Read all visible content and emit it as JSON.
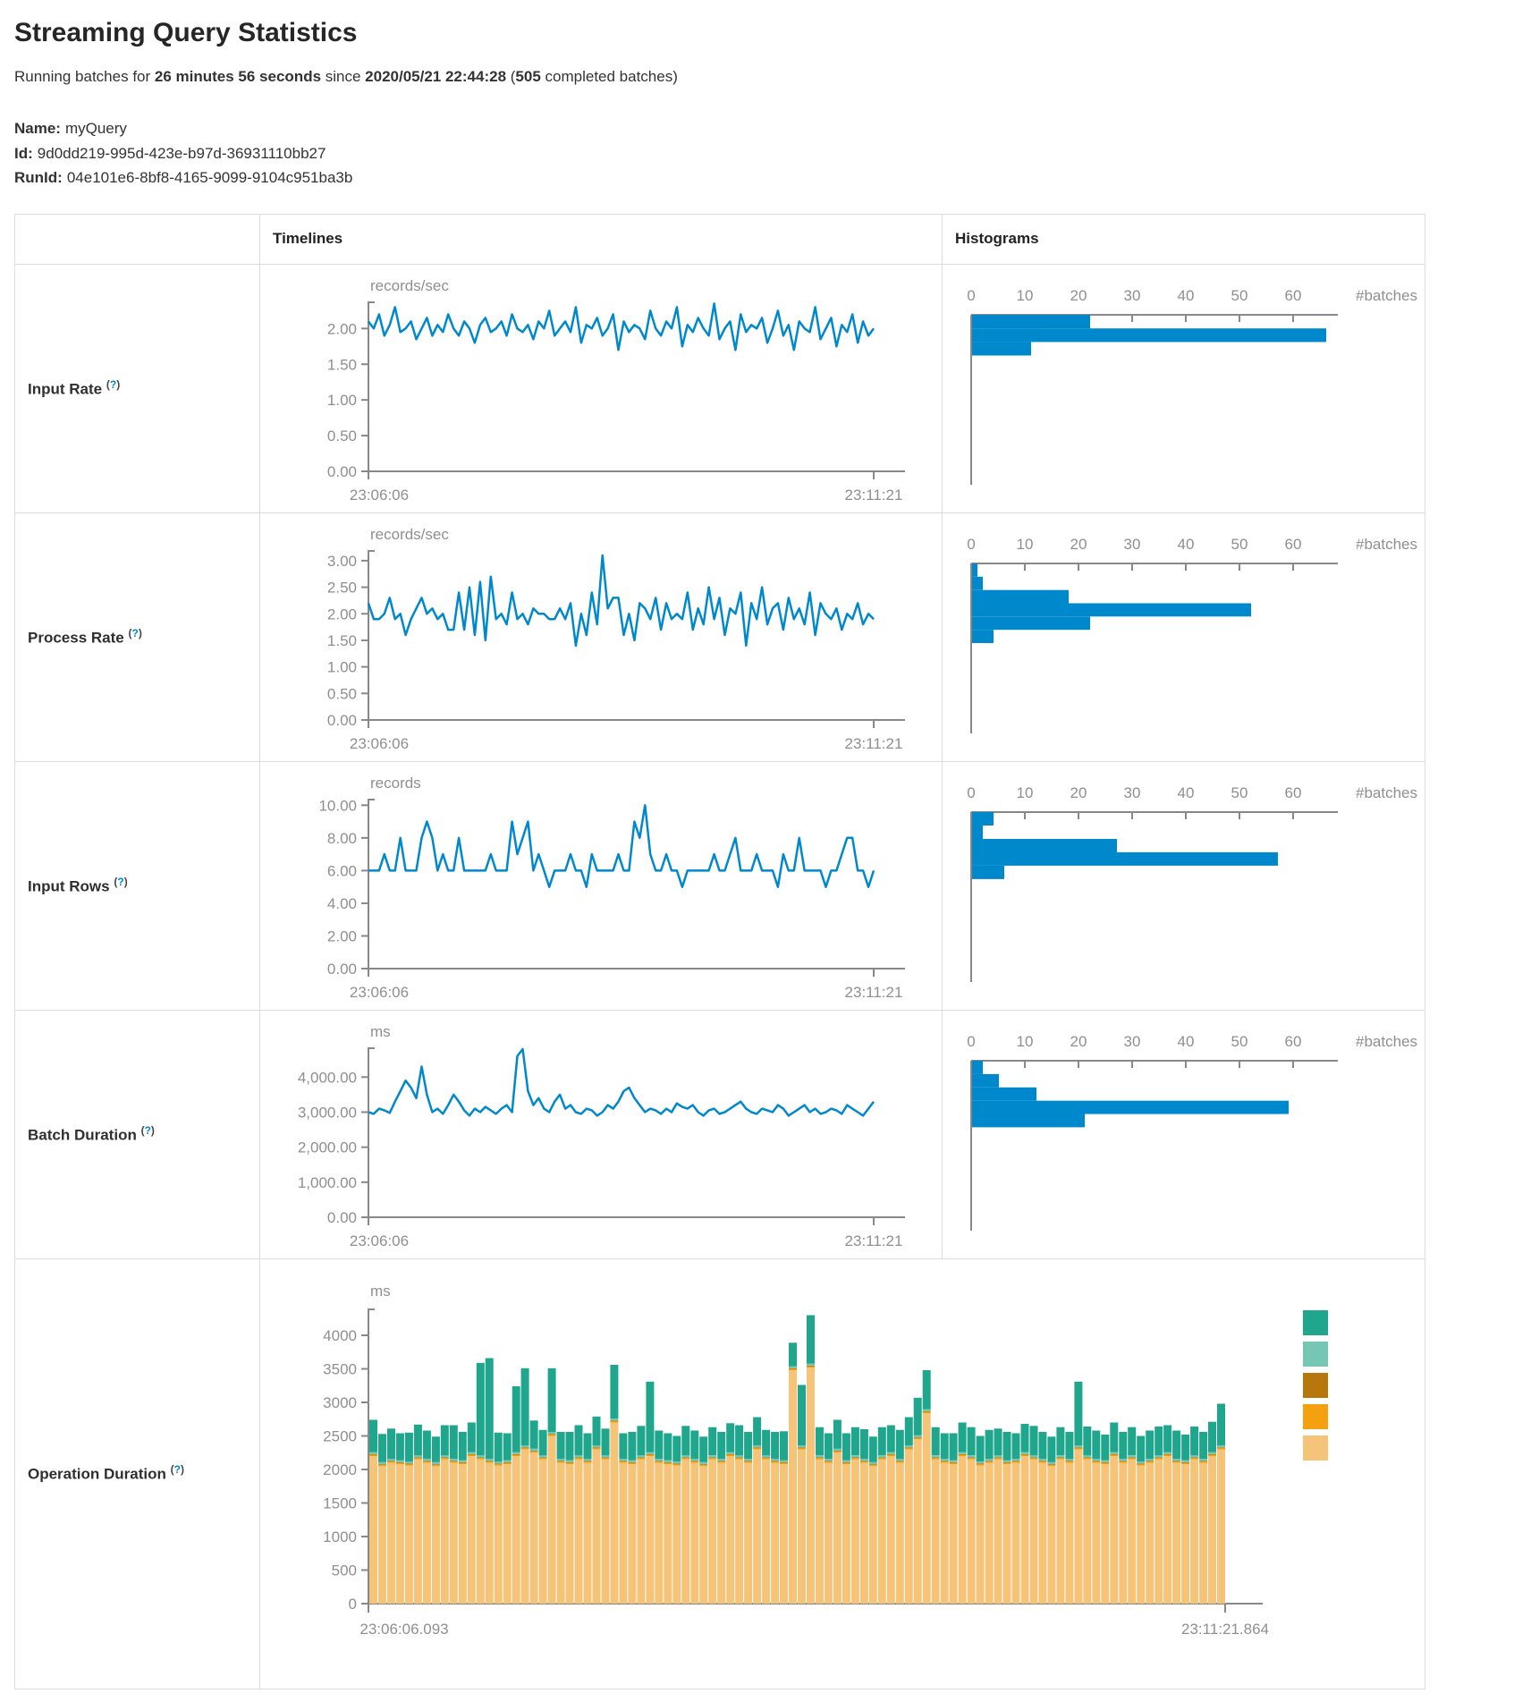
{
  "header": {
    "title": "Streaming Query Statistics",
    "running_prefix": "Running batches for ",
    "duration": "26 minutes 56 seconds",
    "since_word": " since ",
    "start_time": "2020/05/21 22:44:28",
    "paren_open": " (",
    "batch_count": "505",
    "batches_suffix": " completed batches)"
  },
  "query_info": {
    "name_label": "Name:",
    "name_value": "myQuery",
    "id_label": "Id:",
    "id_value": "9d0dd219-995d-423e-b97d-36931110bb27",
    "runid_label": "RunId:",
    "runid_value": "04e101e6-8bf8-4165-9099-9104c951ba3b"
  },
  "table": {
    "col_timelines": "Timelines",
    "col_histograms": "Histograms",
    "help": {
      "open": "(",
      "q": "?",
      "close": ")"
    },
    "rows": [
      {
        "label": "Input Rate"
      },
      {
        "label": "Process Rate"
      },
      {
        "label": "Input Rows"
      },
      {
        "label": "Batch Duration"
      },
      {
        "label": "Operation Duration"
      }
    ]
  },
  "colors": {
    "accent_blue": "#0088cc",
    "axis_gray": "#888888",
    "text_muted": "#8f8f8f",
    "border": "#dddddd"
  },
  "chart_data": [
    {
      "id": "input_rate_timeline",
      "type": "line",
      "unit": "records/sec",
      "x_start": "23:06:06",
      "x_end": "23:11:21",
      "ymax": 2.38,
      "yticks": [
        {
          "v": 2,
          "label": "2.00"
        },
        {
          "v": 1.5,
          "label": "1.50"
        },
        {
          "v": 1,
          "label": "1.00"
        },
        {
          "v": 0.5,
          "label": "0.50"
        },
        {
          "v": 0,
          "label": "0.00"
        }
      ],
      "values": [
        2.1,
        2.0,
        2.2,
        1.9,
        2.05,
        2.3,
        1.95,
        2.0,
        2.1,
        1.85,
        2.0,
        2.15,
        1.9,
        2.05,
        1.95,
        2.2,
        2.0,
        1.9,
        2.1,
        2.0,
        1.8,
        2.05,
        2.15,
        1.95,
        2.0,
        2.1,
        1.9,
        2.2,
        2.0,
        1.95,
        2.05,
        1.85,
        2.1,
        2.0,
        2.25,
        1.9,
        2.0,
        2.1,
        1.95,
        2.3,
        1.8,
        2.05,
        2.0,
        2.15,
        1.9,
        2.0,
        2.2,
        1.7,
        2.1,
        1.95,
        2.05,
        2.0,
        1.85,
        2.25,
        2.0,
        1.9,
        2.1,
        2.0,
        2.3,
        1.75,
        2.05,
        1.95,
        2.15,
        2.0,
        1.9,
        2.35,
        1.85,
        2.0,
        2.1,
        1.7,
        2.2,
        1.95,
        2.05,
        2.0,
        2.15,
        1.8,
        2.0,
        2.25,
        1.9,
        2.05,
        1.7,
        2.1,
        2.0,
        1.95,
        2.3,
        1.85,
        2.0,
        2.15,
        1.75,
        2.05,
        1.95,
        2.2,
        1.8,
        2.1,
        1.9,
        2.0
      ]
    },
    {
      "id": "input_rate_histogram",
      "type": "bar",
      "xlabel": "#batches",
      "xticks": [
        0,
        10,
        20,
        30,
        40,
        50,
        60
      ],
      "value_max": 2.38,
      "bins": [
        {
          "hi": 2.38,
          "lo": 2.19,
          "count": 22
        },
        {
          "hi": 2.19,
          "lo": 2.0,
          "count": 66
        },
        {
          "hi": 2.0,
          "lo": 1.81,
          "count": 11
        }
      ]
    },
    {
      "id": "process_rate_timeline",
      "type": "line",
      "unit": "records/sec",
      "x_start": "23:06:06",
      "x_end": "23:11:21",
      "ymax": 3.2,
      "yticks": [
        {
          "v": 3,
          "label": "3.00"
        },
        {
          "v": 2.5,
          "label": "2.50"
        },
        {
          "v": 2,
          "label": "2.00"
        },
        {
          "v": 1.5,
          "label": "1.50"
        },
        {
          "v": 1,
          "label": "1.00"
        },
        {
          "v": 0.5,
          "label": "0.50"
        },
        {
          "v": 0,
          "label": "0.00"
        }
      ],
      "values": [
        2.2,
        1.9,
        1.9,
        2.0,
        2.3,
        1.9,
        2.0,
        1.6,
        1.9,
        2.1,
        2.3,
        2.0,
        2.1,
        1.9,
        2.0,
        1.7,
        1.7,
        2.4,
        1.7,
        2.5,
        1.6,
        2.6,
        1.5,
        2.7,
        1.9,
        2.0,
        1.8,
        2.4,
        1.9,
        2.0,
        1.8,
        2.1,
        2.0,
        2.0,
        1.9,
        1.9,
        2.1,
        1.9,
        2.2,
        1.4,
        2.0,
        1.6,
        2.4,
        1.8,
        3.1,
        2.1,
        2.3,
        2.3,
        1.6,
        2.0,
        1.5,
        2.2,
        2.1,
        1.9,
        2.3,
        1.7,
        2.2,
        1.9,
        2.0,
        1.9,
        2.4,
        1.7,
        2.1,
        1.8,
        2.5,
        1.9,
        2.3,
        1.6,
        2.1,
        2.0,
        2.4,
        1.4,
        2.2,
        1.9,
        2.5,
        1.8,
        2.1,
        2.2,
        1.7,
        2.3,
        1.9,
        2.1,
        1.8,
        2.4,
        1.6,
        2.2,
        2.0,
        1.9,
        2.1,
        1.7,
        2.0,
        1.9,
        2.2,
        1.8,
        2.0,
        1.9
      ]
    },
    {
      "id": "process_rate_histogram",
      "type": "bar",
      "xlabel": "#batches",
      "xticks": [
        0,
        10,
        20,
        30,
        40,
        50,
        60
      ],
      "value_max": 3.2,
      "bins": [
        {
          "hi": 3.2,
          "lo": 2.95,
          "count": 1
        },
        {
          "hi": 2.95,
          "lo": 2.7,
          "count": 2
        },
        {
          "hi": 2.7,
          "lo": 2.45,
          "count": 18
        },
        {
          "hi": 2.45,
          "lo": 2.2,
          "count": 52
        },
        {
          "hi": 2.2,
          "lo": 1.95,
          "count": 22
        },
        {
          "hi": 1.95,
          "lo": 1.7,
          "count": 4
        }
      ]
    },
    {
      "id": "input_rows_timeline",
      "type": "line",
      "unit": "records",
      "x_start": "23:06:06",
      "x_end": "23:11:21",
      "ymax": 10.4,
      "yticks": [
        {
          "v": 10,
          "label": "10.00"
        },
        {
          "v": 8,
          "label": "8.00"
        },
        {
          "v": 6,
          "label": "6.00"
        },
        {
          "v": 4,
          "label": "4.00"
        },
        {
          "v": 2,
          "label": "2.00"
        },
        {
          "v": 0,
          "label": "0.00"
        }
      ],
      "values": [
        6,
        6,
        6,
        7,
        6,
        6,
        8,
        6,
        6,
        6,
        8,
        9,
        8,
        6,
        7,
        6,
        6,
        8,
        6,
        6,
        6,
        6,
        6,
        7,
        6,
        6,
        6,
        9,
        7,
        8,
        9,
        6,
        7,
        6,
        5,
        6,
        6,
        6,
        7,
        6,
        6,
        5,
        7,
        6,
        6,
        6,
        6,
        7,
        6,
        6,
        9,
        8,
        10,
        7,
        6,
        6,
        7,
        6,
        6,
        5,
        6,
        6,
        6,
        6,
        6,
        7,
        6,
        6,
        7,
        8,
        6,
        6,
        6,
        7,
        6,
        6,
        6,
        5,
        7,
        6,
        6,
        8,
        6,
        6,
        6,
        6,
        5,
        6,
        6,
        7,
        8,
        8,
        6,
        6,
        5,
        6
      ]
    },
    {
      "id": "input_rows_histogram",
      "type": "bar",
      "xlabel": "#batches",
      "xticks": [
        0,
        10,
        20,
        30,
        40,
        50,
        60
      ],
      "value_max": 10.4,
      "bins": [
        {
          "hi": 10.4,
          "lo": 9.58,
          "count": 4
        },
        {
          "hi": 9.58,
          "lo": 8.76,
          "count": 2
        },
        {
          "hi": 8.76,
          "lo": 7.94,
          "count": 27
        },
        {
          "hi": 7.94,
          "lo": 7.12,
          "count": 57
        },
        {
          "hi": 7.12,
          "lo": 6.3,
          "count": 6
        }
      ]
    },
    {
      "id": "batch_duration_timeline",
      "type": "line",
      "unit": "ms",
      "x_start": "23:06:06",
      "x_end": "23:11:21",
      "ymax": 4850,
      "yticks": [
        {
          "v": 4000,
          "label": "4,000.00"
        },
        {
          "v": 3000,
          "label": "3,000.00"
        },
        {
          "v": 2000,
          "label": "2,000.00"
        },
        {
          "v": 1000,
          "label": "1,000.00"
        },
        {
          "v": 0,
          "label": "0.00"
        }
      ],
      "values": [
        3000,
        2950,
        3100,
        3050,
        2980,
        3300,
        3600,
        3900,
        3700,
        3400,
        4300,
        3500,
        3000,
        3100,
        2950,
        3200,
        3500,
        3300,
        3050,
        2900,
        3100,
        3000,
        3150,
        3050,
        2950,
        3100,
        3200,
        3000,
        4600,
        4800,
        3600,
        3200,
        3400,
        3100,
        3000,
        3300,
        3500,
        3100,
        3200,
        3000,
        2950,
        3100,
        3050,
        2900,
        3000,
        3200,
        3100,
        3300,
        3600,
        3700,
        3400,
        3200,
        3000,
        3100,
        3050,
        2950,
        3100,
        3000,
        3250,
        3150,
        3100,
        3200,
        3000,
        2900,
        3050,
        3100,
        2950,
        3000,
        3100,
        3200,
        3300,
        3100,
        3000,
        2950,
        3100,
        3050,
        3000,
        3200,
        3100,
        2900,
        3000,
        3100,
        3200,
        3000,
        3100,
        2950,
        3000,
        3100,
        3050,
        2950,
        3200,
        3100,
        3000,
        2900,
        3100,
        3300
      ]
    },
    {
      "id": "batch_duration_histogram",
      "type": "bar",
      "xlabel": "#batches",
      "xticks": [
        0,
        10,
        20,
        30,
        40,
        50,
        60
      ],
      "value_max": 4850,
      "bins": [
        {
          "hi": 4850,
          "lo": 4470,
          "count": 2
        },
        {
          "hi": 4470,
          "lo": 4090,
          "count": 5
        },
        {
          "hi": 4090,
          "lo": 3710,
          "count": 12
        },
        {
          "hi": 3710,
          "lo": 3330,
          "count": 59
        },
        {
          "hi": 3330,
          "lo": 2950,
          "count": 21
        }
      ]
    },
    {
      "id": "operation_duration",
      "type": "area",
      "unit": "ms",
      "x_start": "23:06:06.093",
      "x_end": "23:11:21.864",
      "ymax": 4400,
      "yticks": [
        {
          "v": 4000,
          "label": "4000"
        },
        {
          "v": 3500,
          "label": "3500"
        },
        {
          "v": 3000,
          "label": "3000"
        },
        {
          "v": 2500,
          "label": "2500"
        },
        {
          "v": 2000,
          "label": "2000"
        },
        {
          "v": 1500,
          "label": "1500"
        },
        {
          "v": 1000,
          "label": "1000"
        },
        {
          "v": 500,
          "label": "500"
        },
        {
          "v": 0,
          "label": "0"
        }
      ],
      "legend_colors": [
        "#1FA68D",
        "#76C6B4",
        "#B8770D",
        "#F5A00F",
        "#F6C478"
      ],
      "series": [
        {
          "color": "#F6C478",
          "values": [
            2200,
            2050,
            2100,
            2080,
            2060,
            2150,
            2100,
            2050,
            2150,
            2100,
            2080,
            2200,
            2150,
            2100,
            2060,
            2080,
            2200,
            2300,
            2250,
            2150,
            2500,
            2100,
            2080,
            2150,
            2100,
            2300,
            2150,
            2700,
            2100,
            2080,
            2150,
            2200,
            2100,
            2080,
            2060,
            2150,
            2100,
            2050,
            2150,
            2100,
            2200,
            2150,
            2100,
            2300,
            2150,
            2100,
            2080,
            3480,
            2300,
            3520,
            2150,
            2100,
            2250,
            2080,
            2150,
            2100,
            2050,
            2150,
            2200,
            2100,
            2300,
            2450,
            2840,
            2150,
            2100,
            2080,
            2200,
            2150,
            2060,
            2100,
            2150,
            2080,
            2100,
            2200,
            2150,
            2100,
            2050,
            2150,
            2100,
            2300,
            2150,
            2100,
            2080,
            2200,
            2100,
            2150,
            2060,
            2100,
            2150,
            2200,
            2100,
            2080,
            2150,
            2100,
            2200,
            2300
          ]
        },
        {
          "color": "#F5A00F",
          "const": 20
        },
        {
          "color": "#B8770D",
          "const": 10
        },
        {
          "color": "#76C6B4",
          "const": 30
        },
        {
          "color": "#1FA68D",
          "values": [
            480,
            420,
            450,
            400,
            430,
            460,
            420,
            380,
            450,
            500,
            420,
            440,
            1380,
            1500,
            430,
            400,
            980,
            1150,
            420,
            380,
            950,
            400,
            420,
            450,
            380,
            430,
            400,
            800,
            380,
            420,
            440,
            1050,
            420,
            400,
            380,
            440,
            420,
            380,
            420,
            400,
            430,
            450,
            400,
            420,
            380,
            400,
            430,
            350,
            900,
            720,
            420,
            380,
            430,
            400,
            420,
            440,
            380,
            420,
            400,
            430,
            420,
            560,
            580,
            420,
            380,
            400,
            440,
            420,
            380,
            430,
            400,
            420,
            380,
            420,
            440,
            400,
            380,
            420,
            400,
            950,
            430,
            420,
            380,
            440,
            400,
            420,
            380,
            420,
            430,
            400,
            420,
            380,
            430,
            400,
            450,
            620
          ]
        }
      ]
    }
  ]
}
